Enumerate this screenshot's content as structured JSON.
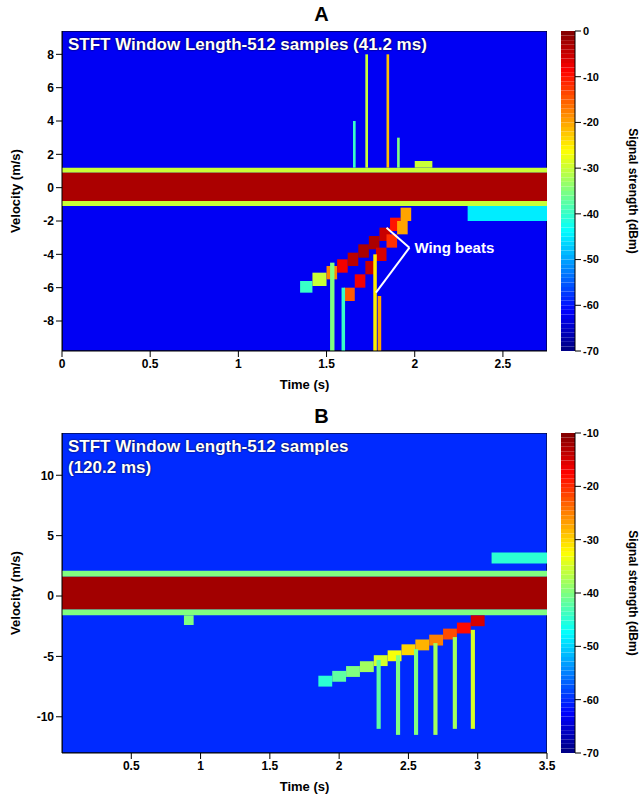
{
  "chart_data": [
    {
      "type": "heatmap",
      "panel": "A",
      "title": "STFT Window Length-512 samples (41.2 ms)",
      "x_label": "Time (s)",
      "y_label": "Velocity (m/s)",
      "xlim": [
        0,
        2.75
      ],
      "xticks": [
        0,
        0.5,
        1,
        1.5,
        2,
        2.5
      ],
      "ylim": [
        -9.8,
        9.4
      ],
      "yticks": [
        -8,
        -6,
        -4,
        -2,
        0,
        2,
        4,
        6,
        8
      ],
      "colorbar": {
        "label": "Signal strength (dBm)",
        "range": [
          -70,
          0
        ],
        "ticks": [
          0,
          -10,
          -20,
          -30,
          -40,
          -50,
          -60,
          -70
        ]
      },
      "background_level": -62,
      "cells": [
        [
          0,
          2.75,
          -1.1,
          -0.8,
          -30
        ],
        [
          0,
          2.75,
          0.9,
          1.2,
          -30
        ],
        [
          0,
          2.75,
          -0.8,
          0.9,
          -3
        ],
        [
          1.35,
          1.42,
          -6.3,
          -5.6,
          -40
        ],
        [
          1.42,
          1.5,
          -5.9,
          -5.1,
          -30
        ],
        [
          1.5,
          1.56,
          -5.5,
          -4.7,
          -18
        ],
        [
          1.56,
          1.62,
          -5.1,
          -4.3,
          -8
        ],
        [
          1.62,
          1.68,
          -4.7,
          -3.9,
          -4
        ],
        [
          1.68,
          1.74,
          -4.2,
          -3.4,
          -3
        ],
        [
          1.74,
          1.8,
          -3.7,
          -2.9,
          -3
        ],
        [
          1.8,
          1.86,
          -3.2,
          -2.4,
          -5
        ],
        [
          1.86,
          1.92,
          -2.6,
          -1.8,
          -10
        ],
        [
          1.92,
          1.98,
          -2.0,
          -1.2,
          -20
        ],
        [
          1.6,
          1.66,
          -6.8,
          -6.0,
          -15
        ],
        [
          1.66,
          1.72,
          -6.0,
          -5.2,
          -8
        ],
        [
          1.72,
          1.78,
          -5.2,
          -4.4,
          -5
        ],
        [
          1.78,
          1.84,
          -4.4,
          -3.6,
          -6
        ],
        [
          1.84,
          1.9,
          -3.6,
          -2.8,
          -12
        ],
        [
          1.9,
          1.96,
          -2.8,
          -2.0,
          -20
        ],
        [
          1.52,
          1.545,
          -9.8,
          -4.5,
          -35
        ],
        [
          1.585,
          1.605,
          -9.8,
          -6,
          -40
        ],
        [
          1.72,
          1.735,
          1.2,
          8,
          -30
        ],
        [
          1.765,
          1.785,
          -9.8,
          -4,
          -25
        ],
        [
          1.84,
          1.855,
          1.2,
          8,
          -22
        ],
        [
          1.9,
          1.915,
          1.2,
          3,
          -35
        ],
        [
          1.79,
          1.81,
          -9.8,
          -6.5,
          -20
        ],
        [
          1.65,
          1.665,
          1.2,
          4,
          -40
        ],
        [
          2.3,
          2.75,
          -2,
          -1.1,
          -45
        ],
        [
          2.0,
          2.1,
          1.2,
          1.6,
          -30
        ]
      ],
      "annotations": [
        {
          "text": "Wing beats",
          "x": 1.97,
          "y": -3.6,
          "arrows_to": [
            [
              1.84,
              -2.4
            ],
            [
              1.78,
              -6.3
            ]
          ]
        }
      ]
    },
    {
      "type": "heatmap",
      "panel": "B",
      "title": "STFT Window Length-512 samples (120.2 ms)",
      "x_label": "Time (s)",
      "y_label": "Velocity (m/s)",
      "xlim": [
        0,
        3.5
      ],
      "xticks": [
        0.5,
        1,
        1.5,
        2,
        2.5,
        3,
        3.5
      ],
      "ylim": [
        -13,
        13.5
      ],
      "yticks": [
        -10,
        -5,
        0,
        5,
        10
      ],
      "colorbar": {
        "label": "Signal strength (dBm)",
        "range": [
          -70,
          -10
        ],
        "ticks": [
          -10,
          -20,
          -30,
          -40,
          -50,
          -60,
          -70
        ]
      },
      "background_level": -60,
      "cells": [
        [
          0,
          3.5,
          -1.6,
          -1.1,
          -40
        ],
        [
          0,
          3.5,
          1.6,
          2.1,
          -40
        ],
        [
          0,
          3.5,
          -1.1,
          1.6,
          -12
        ],
        [
          0.88,
          0.95,
          -2.4,
          -1.6,
          -40
        ],
        [
          1.85,
          1.95,
          -7.5,
          -6.6,
          -45
        ],
        [
          1.95,
          2.05,
          -7.1,
          -6.2,
          -42
        ],
        [
          2.05,
          2.15,
          -6.7,
          -5.8,
          -40
        ],
        [
          2.15,
          2.25,
          -6.3,
          -5.4,
          -38
        ],
        [
          2.25,
          2.35,
          -5.8,
          -4.9,
          -35
        ],
        [
          2.35,
          2.45,
          -5.4,
          -4.5,
          -33
        ],
        [
          2.45,
          2.55,
          -4.9,
          -4.0,
          -30
        ],
        [
          2.55,
          2.65,
          -4.5,
          -3.6,
          -28
        ],
        [
          2.65,
          2.75,
          -4.1,
          -3.2,
          -25
        ],
        [
          2.75,
          2.85,
          -3.6,
          -2.7,
          -22
        ],
        [
          2.85,
          2.95,
          -3.1,
          -2.2,
          -18
        ],
        [
          2.95,
          3.05,
          -2.5,
          -1.6,
          -15
        ],
        [
          2.27,
          2.3,
          -11,
          -5.3,
          -42
        ],
        [
          2.41,
          2.44,
          -11.5,
          -4.9,
          -40
        ],
        [
          2.54,
          2.57,
          -11.5,
          -4.4,
          -40
        ],
        [
          2.68,
          2.71,
          -11.5,
          -3.9,
          -38
        ],
        [
          2.82,
          2.85,
          -11,
          -3.4,
          -38
        ],
        [
          2.95,
          2.98,
          -11,
          -2.8,
          -35
        ],
        [
          3.1,
          3.5,
          2.7,
          3.6,
          -45
        ]
      ],
      "annotations": []
    }
  ]
}
